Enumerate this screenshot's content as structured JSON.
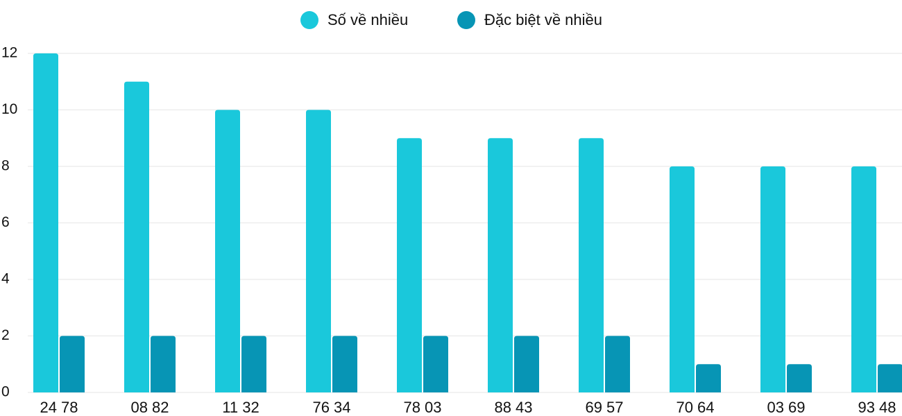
{
  "chart_data": {
    "type": "bar",
    "categories": [
      "24 78",
      "08 82",
      "11 32",
      "76 34",
      "78 03",
      "88 43",
      "69 57",
      "70 64",
      "03 69",
      "93 48"
    ],
    "series": [
      {
        "name": "Số về nhiều",
        "color": "#1ac8db",
        "values": [
          12,
          11,
          10,
          10,
          9,
          9,
          9,
          8,
          8,
          8
        ]
      },
      {
        "name": "Đặc biệt về nhiều",
        "color": "#0795b5",
        "values": [
          2,
          2,
          2,
          2,
          2,
          2,
          2,
          1,
          1,
          1
        ]
      }
    ],
    "ylim": [
      0,
      12
    ],
    "yticks": [
      0,
      2,
      4,
      6,
      8,
      10,
      12
    ],
    "grid": true
  }
}
